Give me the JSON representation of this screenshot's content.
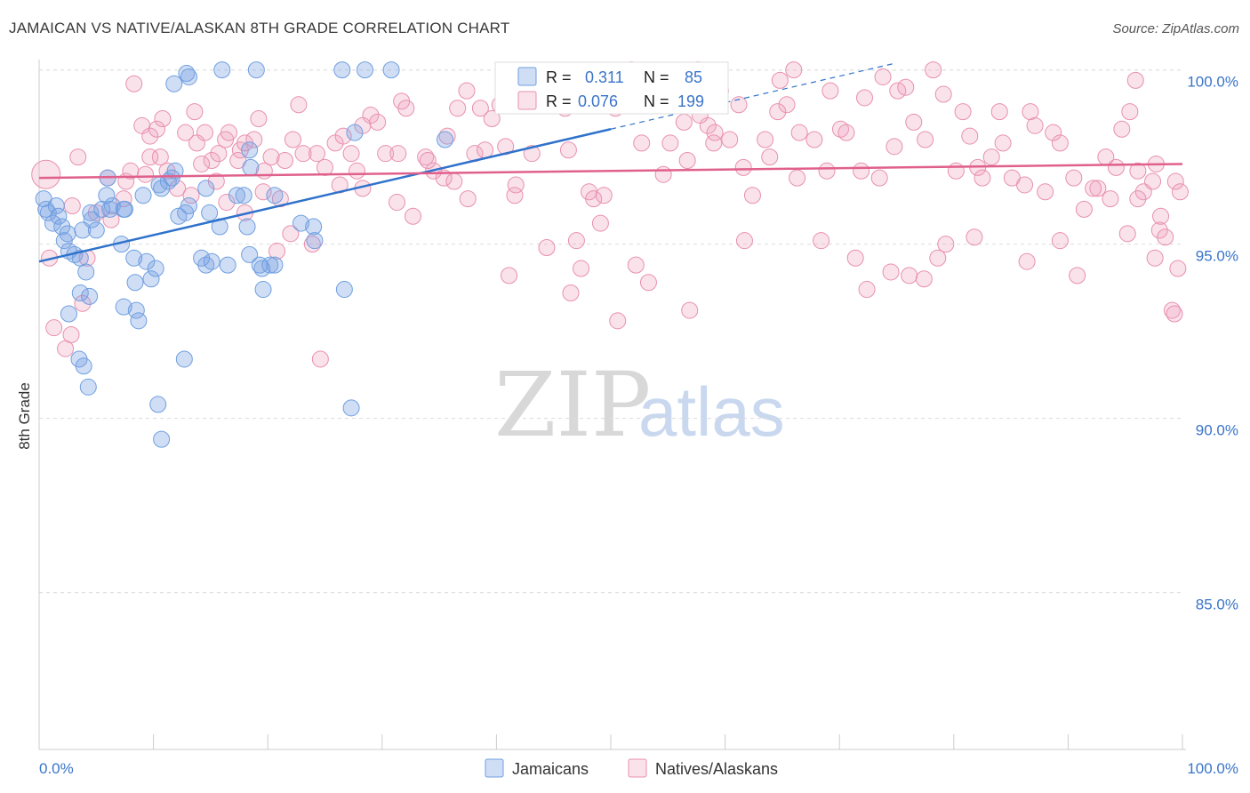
{
  "title": "JAMAICAN VS NATIVE/ALASKAN 8TH GRADE CORRELATION CHART",
  "source": "Source: ZipAtlas.com",
  "watermark": {
    "zip": "ZIP",
    "atlas": "atlas"
  },
  "colors": {
    "blue": "#6f9fe0",
    "blue_fill": "rgba(120,160,225,0.35)",
    "blue_line": "#2f72cc",
    "pink": "#e890ad",
    "pink_fill": "rgba(240,160,190,0.30)",
    "pink_line": "#e0608c",
    "value_text": "#3a74c8"
  },
  "legend_top": [
    {
      "r_label": "R =",
      "r_value": "0.311",
      "n_label": "N =",
      "n_value": "85"
    },
    {
      "r_label": "R =",
      "r_value": "0.076",
      "n_label": "N =",
      "n_value": "199"
    }
  ],
  "legend_bottom": [
    "Jamaicans",
    "Natives/Alaskans"
  ],
  "chart_data": {
    "type": "scatter",
    "title": "JAMAICAN VS NATIVE/ALASKAN 8TH GRADE CORRELATION CHART",
    "xlabel": "",
    "ylabel": "8th Grade",
    "xlim": [
      0,
      100
    ],
    "ylim": [
      80.5,
      100.5
    ],
    "x_tick_labels": [
      "0.0%",
      "100.0%"
    ],
    "y_tick_labels": [
      "100.0%",
      "95.0%",
      "90.0%",
      "85.0%"
    ],
    "y_ticks": [
      100,
      95,
      90,
      85
    ],
    "grid": true,
    "legend_placement": "top-center",
    "series": [
      {
        "name": "Jamaicans",
        "r": 0.311,
        "n": 85,
        "trend": {
          "x": [
            0,
            50
          ],
          "y": [
            94.5,
            98.3
          ],
          "dashed_to": [
            75,
            100.2
          ]
        },
        "points": [
          [
            0.4,
            96.3
          ],
          [
            0.6,
            96.0
          ],
          [
            0.8,
            95.9
          ],
          [
            1.2,
            95.6
          ],
          [
            1.5,
            96.1
          ],
          [
            1.7,
            95.8
          ],
          [
            2,
            95.5
          ],
          [
            2.2,
            95.1
          ],
          [
            2.5,
            95.3
          ],
          [
            2.6,
            94.8
          ],
          [
            3.1,
            94.7
          ],
          [
            3.6,
            94.6
          ],
          [
            3.8,
            95.4
          ],
          [
            4.1,
            94.2
          ],
          [
            4.5,
            95.9
          ],
          [
            4.6,
            95.7
          ],
          [
            5,
            95.4
          ],
          [
            6,
            96.9
          ],
          [
            5.5,
            96.0
          ],
          [
            5.9,
            96.4
          ],
          [
            6.2,
            96.0
          ],
          [
            6.4,
            96.1
          ],
          [
            7.2,
            95.0
          ],
          [
            7.4,
            96.0
          ],
          [
            7.5,
            96.0
          ],
          [
            8.3,
            94.6
          ],
          [
            8.4,
            93.9
          ],
          [
            8.5,
            93.1
          ],
          [
            8.7,
            92.8
          ],
          [
            9.1,
            96.4
          ],
          [
            9.4,
            94.5
          ],
          [
            9.8,
            94.0
          ],
          [
            10.2,
            94.3
          ],
          [
            10.5,
            96.7
          ],
          [
            10.7,
            96.6
          ],
          [
            11.3,
            96.8
          ],
          [
            11.6,
            96.9
          ],
          [
            11.9,
            97.1
          ],
          [
            12.2,
            95.8
          ],
          [
            12.8,
            95.9
          ],
          [
            13.1,
            96.1
          ],
          [
            14.2,
            94.6
          ],
          [
            14.6,
            94.4
          ],
          [
            15.1,
            94.5
          ],
          [
            15.8,
            95.5
          ],
          [
            16.5,
            94.4
          ],
          [
            17.3,
            96.4
          ],
          [
            17.9,
            96.4
          ],
          [
            3.5,
            91.7
          ],
          [
            3.9,
            91.5
          ],
          [
            4.3,
            90.9
          ],
          [
            10.4,
            90.4
          ],
          [
            10.7,
            89.4
          ],
          [
            12.7,
            91.7
          ],
          [
            2.6,
            93.0
          ],
          [
            3.6,
            93.6
          ],
          [
            4.4,
            93.5
          ],
          [
            7.4,
            93.2
          ],
          [
            11.8,
            99.6
          ],
          [
            12.9,
            99.9
          ],
          [
            13.1,
            99.8
          ],
          [
            16,
            100.0
          ],
          [
            19,
            100.0
          ],
          [
            26.5,
            100.0
          ],
          [
            28.5,
            100.0
          ],
          [
            30.8,
            100.0
          ],
          [
            18.4,
            97.7
          ],
          [
            18.5,
            97.2
          ],
          [
            14.6,
            96.6
          ],
          [
            14.9,
            95.9
          ],
          [
            18.2,
            95.5
          ],
          [
            18.4,
            94.7
          ],
          [
            19.3,
            94.4
          ],
          [
            19.5,
            94.3
          ],
          [
            19.6,
            93.7
          ],
          [
            20.2,
            94.4
          ],
          [
            20.6,
            94.4
          ],
          [
            20.6,
            96.4
          ],
          [
            22.9,
            95.6
          ],
          [
            24,
            95.5
          ],
          [
            24.1,
            95.1
          ],
          [
            26.7,
            93.7
          ],
          [
            27.3,
            90.3
          ],
          [
            27.6,
            98.2
          ],
          [
            35.5,
            98.0
          ]
        ]
      },
      {
        "name": "Natives/Alaskans",
        "r": 0.076,
        "n": 199,
        "trend": {
          "x": [
            0,
            100
          ],
          "y": [
            96.9,
            97.3
          ]
        },
        "points": [
          [
            0.6,
            97.0
          ],
          [
            0.9,
            94.6
          ],
          [
            1.3,
            92.6
          ],
          [
            2.3,
            92.0
          ],
          [
            2.8,
            92.4
          ],
          [
            3.8,
            93.3
          ],
          [
            4.2,
            94.6
          ],
          [
            5,
            95.9
          ],
          [
            6,
            96.9
          ],
          [
            6.3,
            95.7
          ],
          [
            7.4,
            96.3
          ],
          [
            7.6,
            96.8
          ],
          [
            8,
            97.1
          ],
          [
            9.3,
            97.0
          ],
          [
            9.7,
            98.1
          ],
          [
            10.3,
            98.3
          ],
          [
            10.6,
            97.5
          ],
          [
            11.2,
            97.1
          ],
          [
            12.1,
            96.6
          ],
          [
            12.8,
            98.2
          ],
          [
            13.6,
            98.8
          ],
          [
            14.5,
            98.2
          ],
          [
            15.1,
            97.4
          ],
          [
            15.7,
            97.6
          ],
          [
            16.3,
            98.0
          ],
          [
            16.6,
            98.2
          ],
          [
            17.4,
            97.4
          ],
          [
            17.6,
            97.7
          ],
          [
            18,
            97.9
          ],
          [
            18.8,
            98.0
          ],
          [
            19.2,
            98.6
          ],
          [
            19.7,
            97.1
          ],
          [
            20.3,
            97.5
          ],
          [
            21.1,
            96.3
          ],
          [
            21.5,
            97.4
          ],
          [
            22.2,
            98.0
          ],
          [
            22.7,
            99.0
          ],
          [
            23.1,
            97.6
          ],
          [
            24.3,
            97.6
          ],
          [
            25,
            97.2
          ],
          [
            25.9,
            97.9
          ],
          [
            26.6,
            98.1
          ],
          [
            27.3,
            97.6
          ],
          [
            27.8,
            97.1
          ],
          [
            28.3,
            96.6
          ],
          [
            29,
            98.7
          ],
          [
            29.6,
            98.5
          ],
          [
            30.3,
            97.6
          ],
          [
            31.3,
            96.2
          ],
          [
            31.7,
            99.1
          ],
          [
            32.1,
            98.9
          ],
          [
            32.7,
            95.8
          ],
          [
            33.8,
            97.5
          ],
          [
            34.5,
            97.1
          ],
          [
            35.4,
            96.9
          ],
          [
            35.7,
            98.1
          ],
          [
            36.3,
            96.8
          ],
          [
            36.6,
            98.9
          ],
          [
            37.4,
            99.4
          ],
          [
            38.1,
            97.6
          ],
          [
            38.6,
            98.9
          ],
          [
            39,
            97.7
          ],
          [
            39.6,
            98.6
          ],
          [
            40.6,
            99.6
          ],
          [
            40.8,
            97.8
          ],
          [
            41.1,
            94.1
          ],
          [
            41.6,
            96.4
          ],
          [
            41.7,
            96.7
          ],
          [
            43.1,
            97.6
          ],
          [
            43.7,
            99.5
          ],
          [
            44.4,
            94.9
          ],
          [
            45.5,
            99.0
          ],
          [
            46.3,
            97.7
          ],
          [
            46.5,
            93.6
          ],
          [
            47,
            95.1
          ],
          [
            47.4,
            94.3
          ],
          [
            48.1,
            96.5
          ],
          [
            48.5,
            96.3
          ],
          [
            49.1,
            95.6
          ],
          [
            49.4,
            96.4
          ],
          [
            50.1,
            99.2
          ],
          [
            50.4,
            98.9
          ],
          [
            50.6,
            92.8
          ],
          [
            51.2,
            99.4
          ],
          [
            51.8,
            100.0
          ],
          [
            52.2,
            94.4
          ],
          [
            52.7,
            97.9
          ],
          [
            53.3,
            93.9
          ],
          [
            54.6,
            97.0
          ],
          [
            55.1,
            99.5
          ],
          [
            55.5,
            99.1
          ],
          [
            56.4,
            98.5
          ],
          [
            56.7,
            97.4
          ],
          [
            56.9,
            93.1
          ],
          [
            57.6,
            100.0
          ],
          [
            58.5,
            98.4
          ],
          [
            59.1,
            98.2
          ],
          [
            59.6,
            99.4
          ],
          [
            60.4,
            98.0
          ],
          [
            61.2,
            99.0
          ],
          [
            61.6,
            97.2
          ],
          [
            62.4,
            96.4
          ],
          [
            63.5,
            98.0
          ],
          [
            63.9,
            97.5
          ],
          [
            64.8,
            99.7
          ],
          [
            65.4,
            99.0
          ],
          [
            66.3,
            96.9
          ],
          [
            66.5,
            98.2
          ],
          [
            67.8,
            98.0
          ],
          [
            68.4,
            95.1
          ],
          [
            68.9,
            97.1
          ],
          [
            70.1,
            98.3
          ],
          [
            70.6,
            98.2
          ],
          [
            71.9,
            97.1
          ],
          [
            72.2,
            99.2
          ],
          [
            73.5,
            96.9
          ],
          [
            73.8,
            99.8
          ],
          [
            74.8,
            97.8
          ],
          [
            75.1,
            99.4
          ],
          [
            75.8,
            99.5
          ],
          [
            76.1,
            94.1
          ],
          [
            76.5,
            98.5
          ],
          [
            77.5,
            98.0
          ],
          [
            78.2,
            100.0
          ],
          [
            78.6,
            94.6
          ],
          [
            79.1,
            99.3
          ],
          [
            80.2,
            97.1
          ],
          [
            80.8,
            98.8
          ],
          [
            81.4,
            98.1
          ],
          [
            82.1,
            97.2
          ],
          [
            82.5,
            96.9
          ],
          [
            83.3,
            97.5
          ],
          [
            84,
            98.8
          ],
          [
            84.3,
            97.9
          ],
          [
            85.1,
            96.9
          ],
          [
            86.2,
            96.7
          ],
          [
            86.7,
            98.8
          ],
          [
            87.1,
            98.4
          ],
          [
            88,
            96.5
          ],
          [
            88.7,
            98.2
          ],
          [
            89.3,
            97.9
          ],
          [
            90.5,
            96.9
          ],
          [
            90.8,
            94.1
          ],
          [
            91.4,
            96.0
          ],
          [
            92.6,
            96.6
          ],
          [
            93.3,
            97.5
          ],
          [
            93.7,
            96.3
          ],
          [
            94.2,
            97.2
          ],
          [
            94.7,
            98.3
          ],
          [
            95.4,
            98.8
          ],
          [
            95.9,
            99.7
          ],
          [
            96.1,
            97.1
          ],
          [
            96.6,
            96.5
          ],
          [
            97.4,
            96.8
          ],
          [
            97.6,
            94.6
          ],
          [
            98,
            95.4
          ],
          [
            98.5,
            95.2
          ],
          [
            99.1,
            93.1
          ],
          [
            99.4,
            96.8
          ],
          [
            99.6,
            94.3
          ],
          [
            99.8,
            96.5
          ],
          [
            98.1,
            95.8
          ],
          [
            8.3,
            99.6
          ],
          [
            9,
            98.4
          ],
          [
            9.7,
            97.5
          ],
          [
            10.8,
            98.6
          ],
          [
            13.3,
            96.4
          ],
          [
            13.8,
            97.9
          ],
          [
            14.2,
            97.3
          ],
          [
            15.5,
            96.8
          ],
          [
            16.4,
            96.2
          ],
          [
            18,
            95.9
          ],
          [
            19.6,
            96.5
          ],
          [
            20.8,
            94.8
          ],
          [
            22,
            95.3
          ],
          [
            23.9,
            95.0
          ],
          [
            24.6,
            91.7
          ],
          [
            26.3,
            96.7
          ],
          [
            28.3,
            98.4
          ],
          [
            31.4,
            97.6
          ],
          [
            34,
            97.4
          ],
          [
            37.5,
            96.3
          ],
          [
            40.3,
            99.0
          ],
          [
            42.5,
            99.0
          ],
          [
            44.9,
            99.6
          ],
          [
            46,
            98.9
          ],
          [
            53.6,
            99.7
          ],
          [
            55.2,
            97.9
          ],
          [
            57.8,
            98.7
          ],
          [
            59,
            97.9
          ],
          [
            61.7,
            95.1
          ],
          [
            64.6,
            98.8
          ],
          [
            66,
            100.0
          ],
          [
            69.2,
            99.4
          ],
          [
            71.4,
            94.6
          ],
          [
            72.4,
            93.7
          ],
          [
            74.5,
            94.2
          ],
          [
            77.4,
            94.0
          ],
          [
            79.3,
            95.0
          ],
          [
            81.8,
            95.2
          ],
          [
            86.4,
            94.5
          ],
          [
            89.3,
            95.1
          ],
          [
            92.2,
            96.6
          ],
          [
            95.2,
            95.3
          ],
          [
            96.1,
            96.3
          ],
          [
            97.7,
            97.3
          ],
          [
            99.3,
            93.0
          ],
          [
            2.9,
            96.1
          ],
          [
            3.4,
            97.5
          ]
        ]
      }
    ]
  }
}
